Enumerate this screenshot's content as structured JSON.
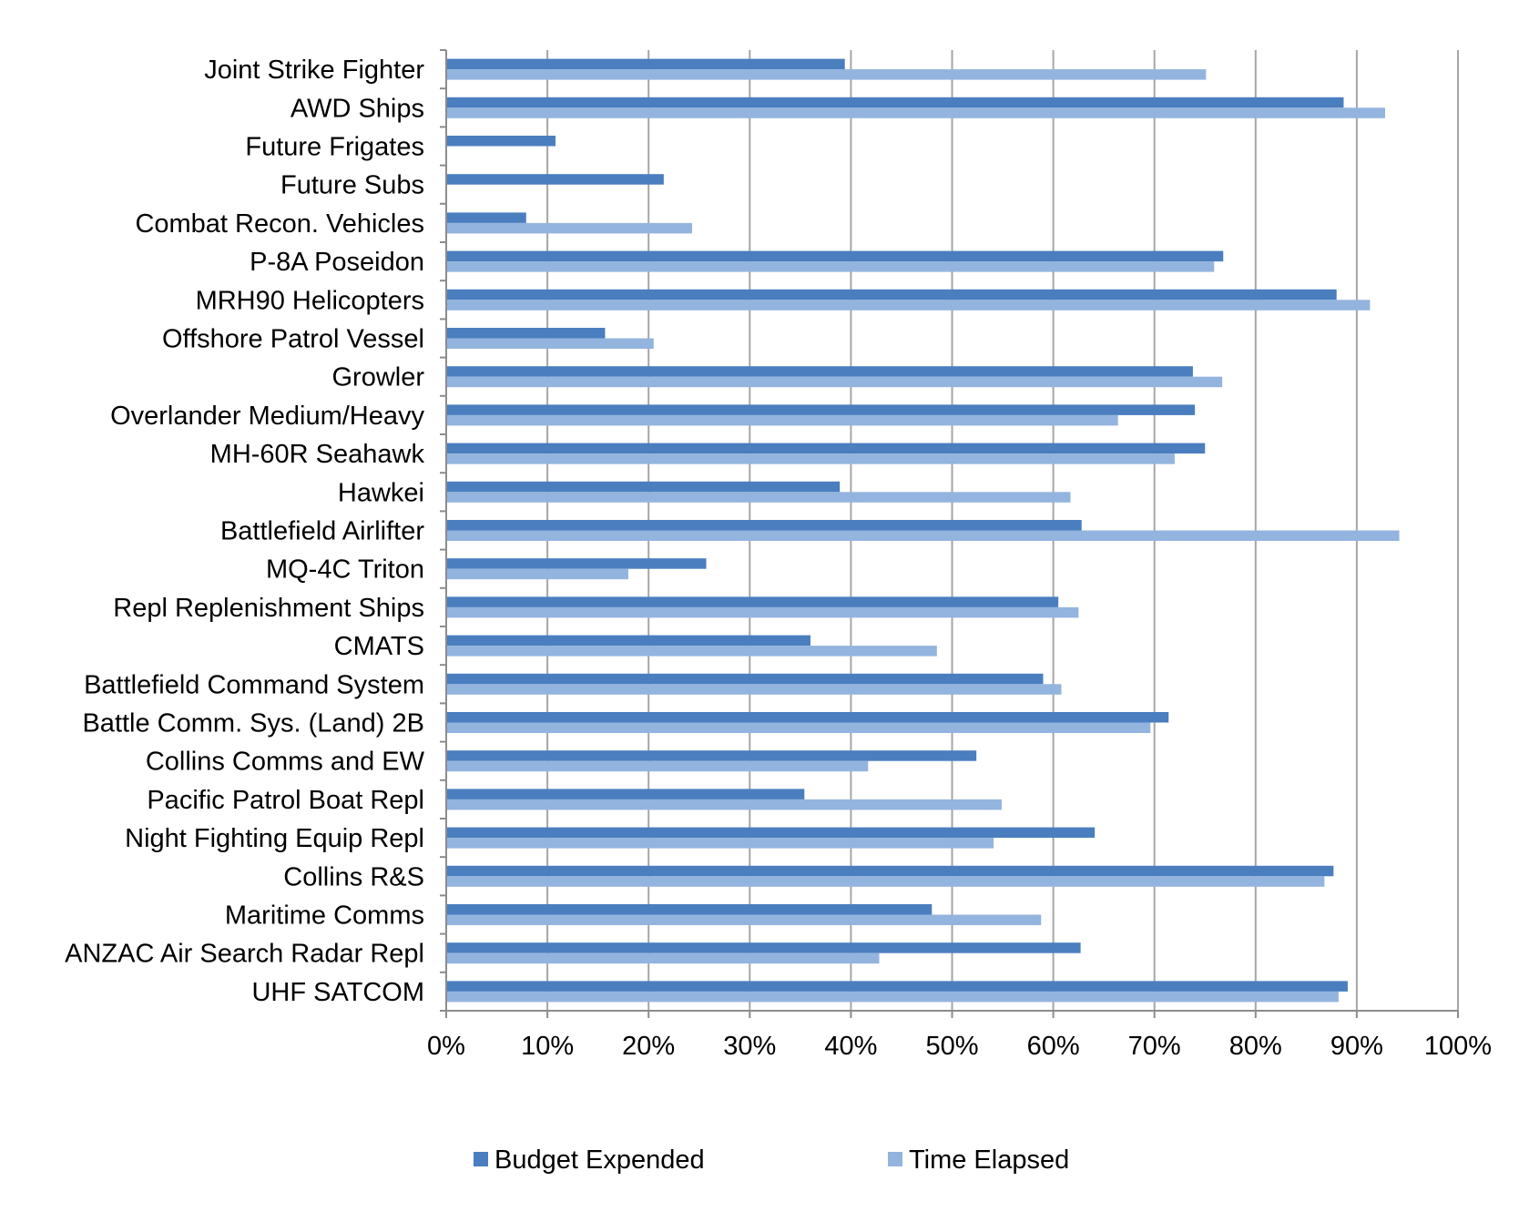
{
  "colors": {
    "budget": "#4a7ebf",
    "time": "#93b4de",
    "grid": "#a6a6a6",
    "axis": "#8c8c8c"
  },
  "chart_data": {
    "type": "bar",
    "orientation": "horizontal",
    "title": "",
    "xlabel": "",
    "ylabel": "",
    "xlim": [
      0,
      100
    ],
    "x_ticks": [
      "0%",
      "10%",
      "20%",
      "30%",
      "40%",
      "50%",
      "60%",
      "70%",
      "80%",
      "90%",
      "100%"
    ],
    "grid": "vertical",
    "legend_position": "bottom",
    "categories": [
      "Joint Strike Fighter",
      "AWD Ships",
      "Future Frigates",
      "Future Subs",
      "Combat Recon. Vehicles",
      "P-8A Poseidon",
      "MRH90 Helicopters",
      "Offshore Patrol Vessel",
      "Growler",
      "Overlander Medium/Heavy",
      "MH-60R Seahawk",
      "Hawkei",
      "Battlefield Airlifter",
      "MQ-4C Triton",
      "Repl Replenishment Ships",
      "CMATS",
      "Battlefield Command System",
      "Battle Comm. Sys. (Land) 2B",
      "Collins Comms and EW",
      "Pacific Patrol Boat Repl",
      "Night Fighting Equip Repl",
      "Collins R&S",
      "Maritime Comms",
      "ANZAC Air Search Radar Repl",
      "UHF SATCOM"
    ],
    "series": [
      {
        "name": "Budget Expended",
        "values": [
          39.4,
          88.7,
          10.8,
          21.5,
          7.9,
          76.8,
          88.0,
          15.7,
          73.8,
          74.0,
          75.0,
          38.9,
          62.8,
          25.7,
          60.5,
          36.0,
          59.0,
          71.4,
          52.4,
          35.4,
          64.1,
          87.7,
          48.0,
          62.7,
          89.1
        ]
      },
      {
        "name": "Time Elapsed",
        "values": [
          75.1,
          92.8,
          0,
          0,
          24.3,
          75.9,
          91.3,
          20.5,
          76.7,
          66.4,
          72.0,
          61.7,
          94.2,
          18.0,
          62.5,
          48.5,
          60.8,
          69.6,
          41.7,
          54.9,
          54.1,
          86.8,
          58.8,
          42.8,
          88.2
        ]
      }
    ]
  }
}
